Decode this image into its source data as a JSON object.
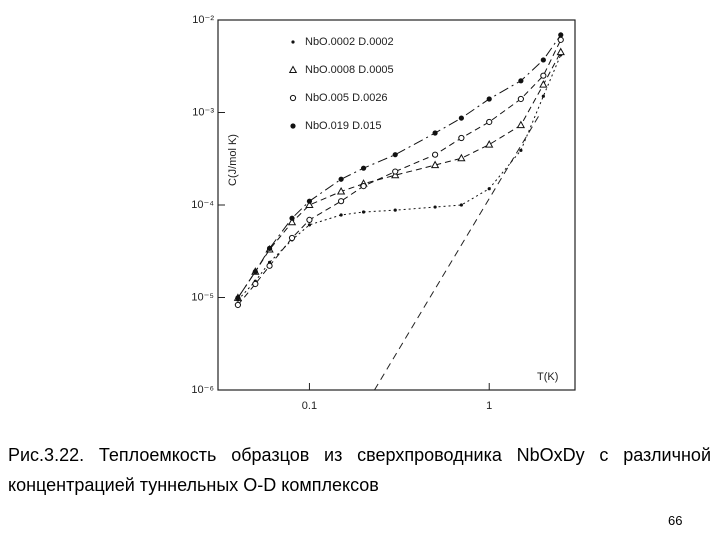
{
  "chart_data": {
    "type": "line",
    "xlabel": "T(K)",
    "ylabel": "C(J/mol K)",
    "xscale": "log",
    "yscale": "log",
    "x": [
      0.04,
      0.05,
      0.06,
      0.08,
      0.1,
      0.15,
      0.2,
      0.3,
      0.5,
      0.7,
      1.0,
      1.5,
      2.0,
      2.5
    ],
    "series": [
      {
        "name": "NbO.0002 D.0002",
        "color": "#111111",
        "marker": "dot",
        "dash": "2,3",
        "values": [
          9.4e-06,
          1.5e-05,
          2.4e-05,
          4.2e-05,
          6.1e-05,
          7.8e-05,
          8.4e-05,
          8.8e-05,
          9.5e-05,
          0.0001,
          0.00015,
          0.00039,
          0.0015,
          0.0042
        ]
      },
      {
        "name": "NbO.0008 D.0005",
        "color": "#111111",
        "marker": "triangle",
        "dash": "6,4",
        "values": [
          9.9e-06,
          1.9e-05,
          3.3e-05,
          6.5e-05,
          0.0001,
          0.00014,
          0.00017,
          0.00021,
          0.00027,
          0.00032,
          0.00045,
          0.00073,
          0.002,
          0.0045
        ]
      },
      {
        "name": "NbO.005 D.0026",
        "color": "#111111",
        "marker": "circle",
        "dash": "6,4",
        "values": [
          8.3e-06,
          1.4e-05,
          2.2e-05,
          4.4e-05,
          6.9e-05,
          0.00011,
          0.00016,
          0.00023,
          0.00035,
          0.00053,
          0.00079,
          0.0014,
          0.0025,
          0.0061
        ]
      },
      {
        "name": "NbO.019 D.015",
        "color": "#111111",
        "marker": "filled-circle",
        "dash": "10,4,2,4",
        "values": [
          9.9e-06,
          1.9e-05,
          3.4e-05,
          7.2e-05,
          0.00011,
          0.00019,
          0.00025,
          0.00035,
          0.0006,
          0.00087,
          0.0014,
          0.0022,
          0.0037,
          0.0069
        ]
      }
    ],
    "reference_line": {
      "x": [
        0.23,
        1.9
      ],
      "values": [
        1e-06,
        0.00094
      ]
    },
    "xlim": [
      0.031,
      3.0
    ],
    "ylim": [
      1e-06,
      0.01
    ],
    "xticks": [
      0.1,
      1
    ],
    "yticks": [
      {
        "value": 1e-06,
        "label": "10⁻⁶"
      },
      {
        "value": 1e-05,
        "label": "10⁻⁵"
      },
      {
        "value": 0.0001,
        "label": "10⁻⁴"
      },
      {
        "value": 0.001,
        "label": "10⁻³"
      },
      {
        "value": 0.01,
        "label": "10⁻²"
      }
    ],
    "grid": false,
    "legend": "upper left"
  },
  "caption": "Рис.3.22. Теплоемкость образцов из сверхпроводника NbOxDy с различной концентрацией туннельных O-D комплексов",
  "page_number": "66"
}
